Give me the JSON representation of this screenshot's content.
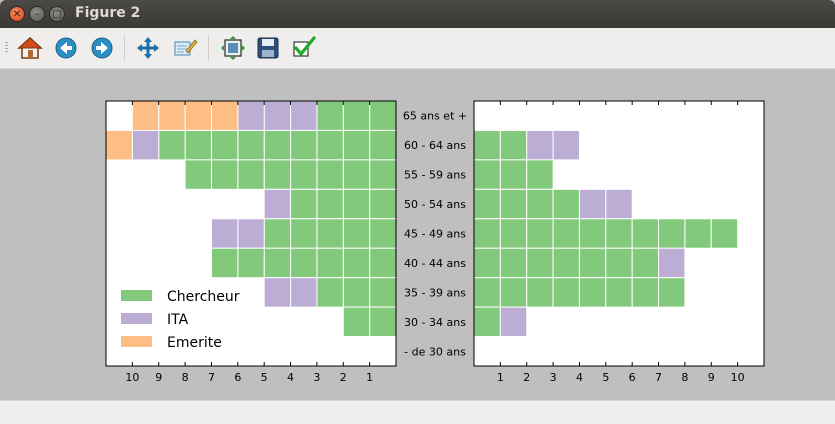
{
  "window": {
    "title": "Figure 2"
  },
  "toolbar": {
    "buttons": [
      {
        "icon": "home-icon",
        "label": "Home"
      },
      {
        "icon": "back-icon",
        "label": "Back"
      },
      {
        "icon": "forward-icon",
        "label": "Forward"
      },
      {
        "icon": "pan-icon",
        "label": "Pan"
      },
      {
        "icon": "zoom-icon",
        "label": "Zoom"
      },
      {
        "icon": "subplots-icon",
        "label": "Subplots"
      },
      {
        "icon": "save-icon",
        "label": "Save"
      },
      {
        "icon": "edit-icon",
        "label": "Edit"
      }
    ]
  },
  "colors": {
    "Chercheur": "#82c97c",
    "ITA": "#bcadd4",
    "Emerite": "#fdbe85"
  },
  "chart_data": [
    {
      "type": "bar",
      "orientation": "horizontal-stacked",
      "x_reversed": true,
      "categories": [
        "65 ans et +",
        "60 - 64 ans",
        "55 - 59 ans",
        "50 - 54 ans",
        "45 - 49 ans",
        "40 - 44 ans",
        "35 - 39 ans",
        "30 - 34 ans",
        "- de 30 ans"
      ],
      "series": [
        {
          "name": "Chercheur",
          "values": [
            3,
            9,
            8,
            4,
            5,
            7,
            3,
            2,
            0
          ]
        },
        {
          "name": "ITA",
          "values": [
            3,
            1,
            0,
            1,
            2,
            0,
            2,
            0,
            0
          ]
        },
        {
          "name": "Emerite",
          "values": [
            4,
            1,
            0,
            0,
            0,
            0,
            0,
            0,
            0
          ]
        }
      ],
      "xticks": [
        "10",
        "9",
        "8",
        "7",
        "6",
        "5",
        "4",
        "3",
        "2",
        "1"
      ],
      "xlim": [
        11,
        0
      ],
      "legend": {
        "position": "lower-left",
        "entries": [
          "Chercheur",
          "ITA",
          "Emerite"
        ]
      }
    },
    {
      "type": "bar",
      "orientation": "horizontal-stacked",
      "categories": [
        "65 ans et +",
        "60 - 64 ans",
        "55 - 59 ans",
        "50 - 54 ans",
        "45 - 49 ans",
        "40 - 44 ans",
        "35 - 39 ans",
        "30 - 34 ans",
        "- de 30 ans"
      ],
      "series": [
        {
          "name": "Chercheur",
          "values": [
            0,
            2,
            3,
            4,
            10,
            7,
            8,
            1,
            0
          ]
        },
        {
          "name": "ITA",
          "values": [
            0,
            2,
            0,
            2,
            0,
            1,
            0,
            1,
            0
          ]
        },
        {
          "name": "Emerite",
          "values": [
            0,
            0,
            0,
            0,
            0,
            0,
            0,
            0,
            0
          ]
        }
      ],
      "xticks": [
        "1",
        "2",
        "3",
        "4",
        "5",
        "6",
        "7",
        "8",
        "9",
        "10"
      ],
      "xlim": [
        0,
        11
      ]
    }
  ]
}
